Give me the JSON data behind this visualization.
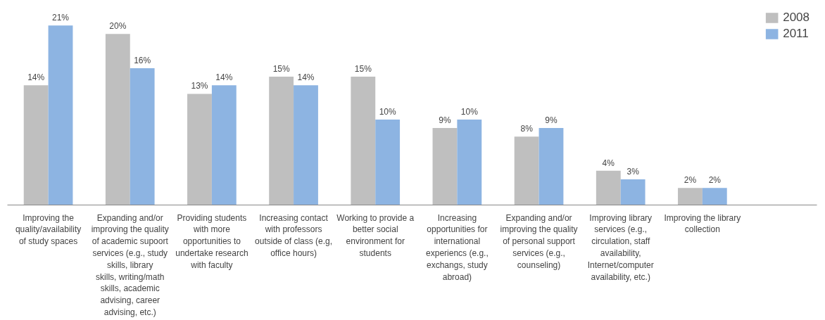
{
  "chart_data": {
    "type": "bar",
    "categories": [
      "Improving the quality/availability of study spaces",
      "Expanding and/or improving the quality of academic supoort services (e.g., study skills, library skills, writing/math skills, academic advising, career advising, etc.)",
      "Providing students with more opportunities to undertake research with faculty",
      "Increasing contact with professors outside of class (e.g, office hours)",
      "Working to provide a better social environment for students",
      "Increasing opportunities for international experiencs (e.g., exchangs, study abroad)",
      "Expanding and/or improving the quality of personal support services (e.g., counseling)",
      "Improving library services (e.g., circulation, staff availability, Internet/computer availability, etc.)",
      "Improving the library collection"
    ],
    "series": [
      {
        "name": "2008",
        "color": "#bfbfbf",
        "values": [
          14,
          20,
          13,
          15,
          15,
          9,
          8,
          4,
          2
        ],
        "value_labels": [
          "14%",
          "20%",
          "13%",
          "15%",
          "15%",
          "9%",
          "8%",
          "4%",
          "2%"
        ]
      },
      {
        "name": "2011",
        "color": "#8db4e2",
        "values": [
          21,
          16,
          14,
          14,
          10,
          10,
          9,
          3,
          2
        ],
        "value_labels": [
          "21%",
          "16%",
          "14%",
          "14%",
          "10%",
          "10%",
          "9%",
          "3%",
          "2%"
        ]
      }
    ],
    "legend": "top right",
    "grid": false
  }
}
